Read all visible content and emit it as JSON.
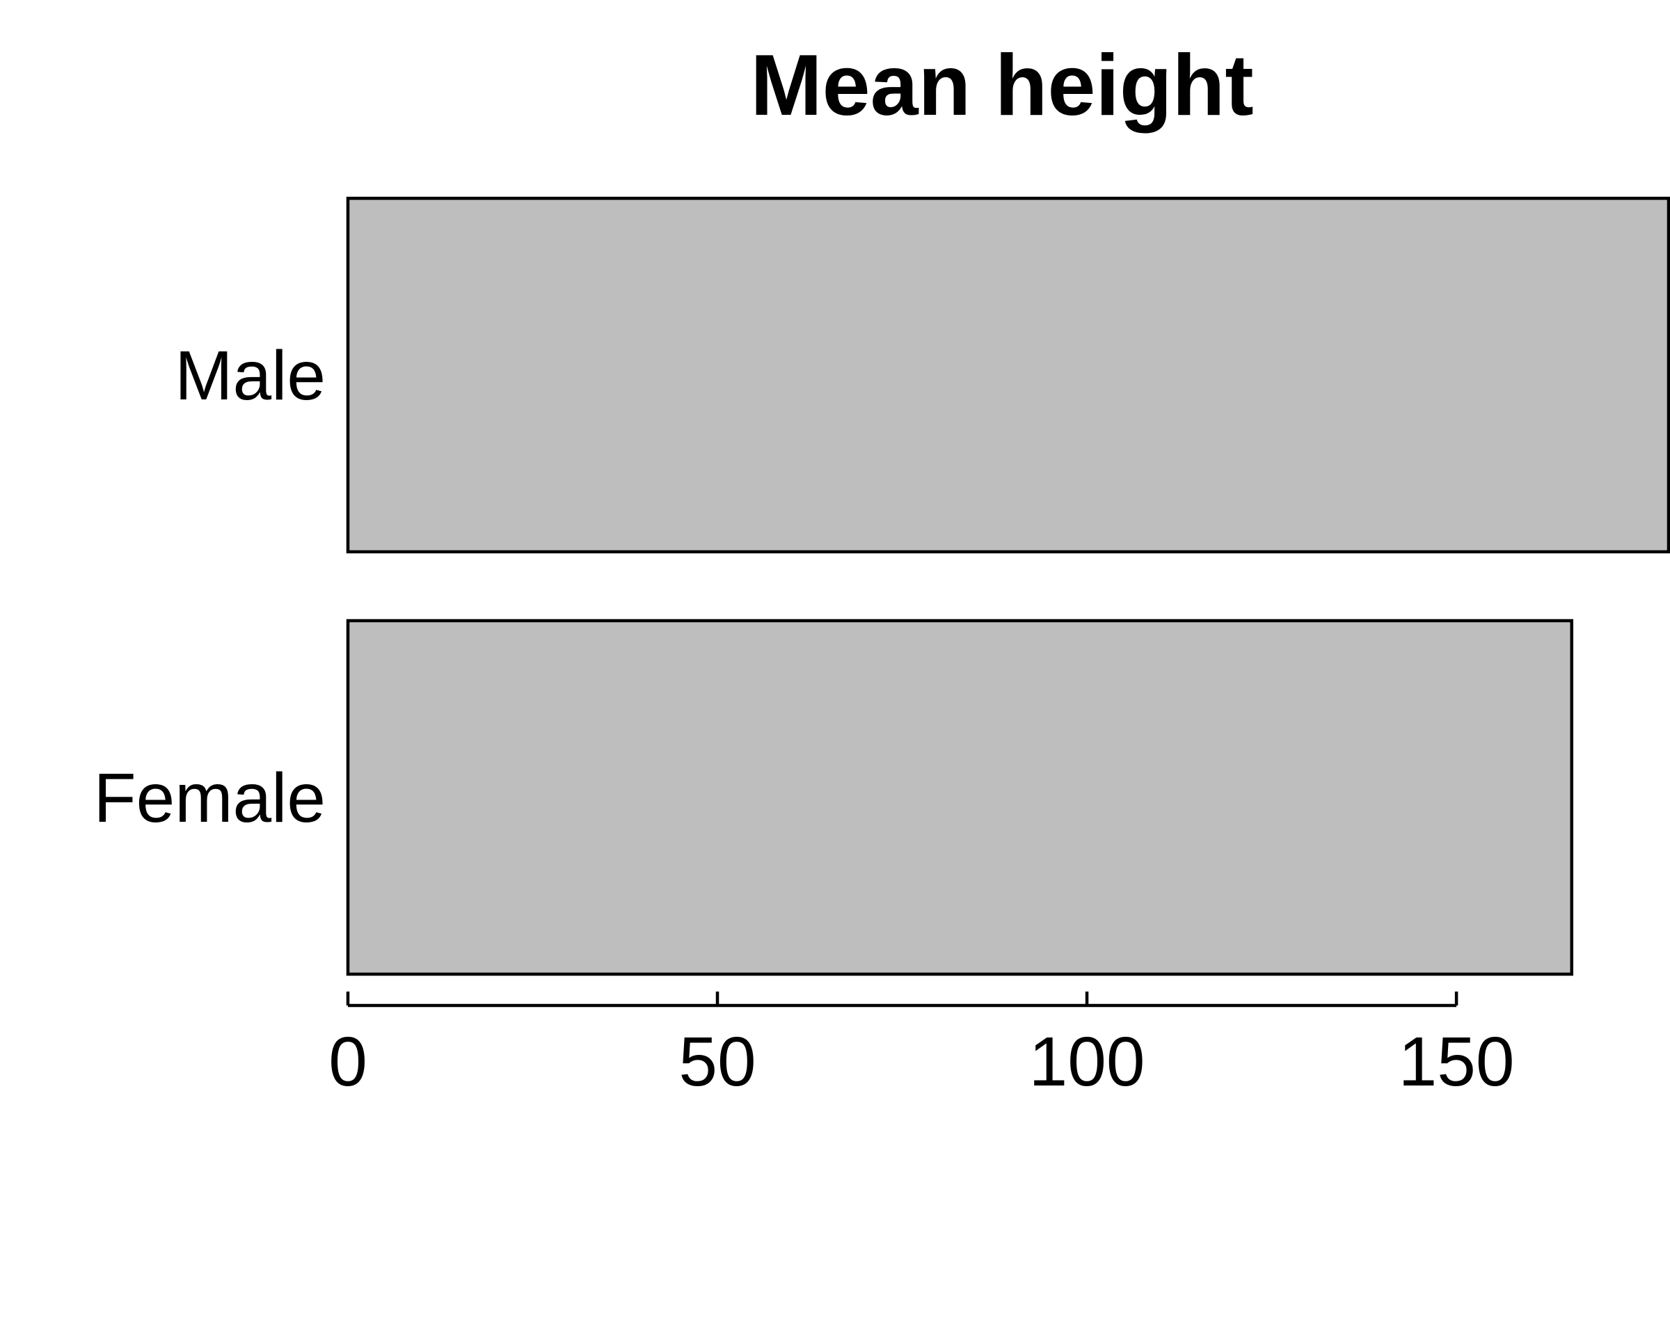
{
  "chart_data": {
    "type": "bar",
    "orientation": "horizontal",
    "title": "Mean height",
    "xlabel": "",
    "ylabel": "",
    "categories": [
      "Male",
      "Female"
    ],
    "values": [
      178.9,
      165.6
    ],
    "xlim": [
      0,
      178.9
    ],
    "xticks": [
      "0",
      "50",
      "100",
      "150"
    ],
    "grid": false,
    "legend": "none",
    "colors": {
      "bar_fill": "#bebebe",
      "bar_stroke": "#000000",
      "background": "#ffffff"
    }
  }
}
